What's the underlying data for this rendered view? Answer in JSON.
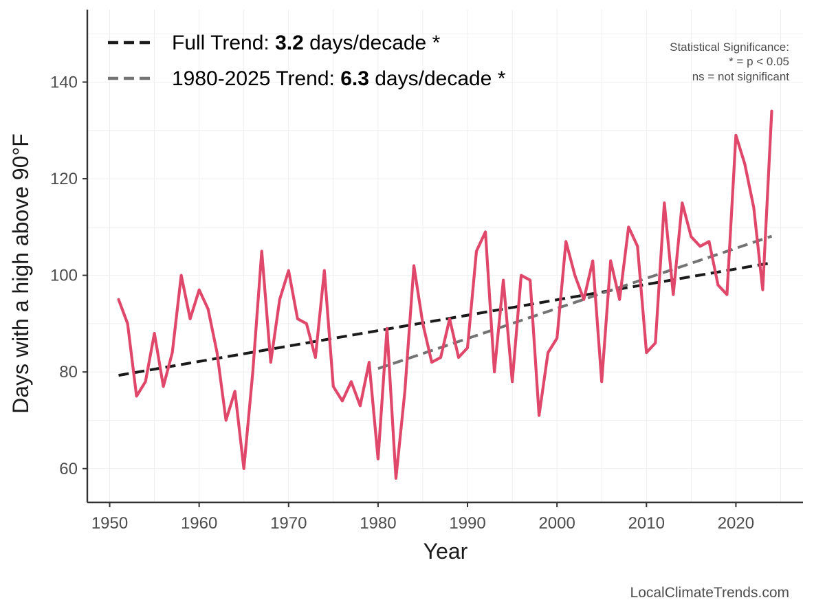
{
  "chart_data": {
    "type": "line",
    "xlabel": "Year",
    "ylabel": "Days with a high above 90°F",
    "xlim": [
      1947.5,
      2027.5
    ],
    "ylim": [
      53,
      155
    ],
    "x_ticks": [
      1950,
      1960,
      1970,
      1980,
      1990,
      2000,
      2010,
      2020
    ],
    "y_ticks": [
      60,
      80,
      100,
      120,
      140
    ],
    "grid": true,
    "series": [
      {
        "color": "#e0486b",
        "x": [
          1951,
          1952,
          1953,
          1954,
          1955,
          1956,
          1957,
          1958,
          1959,
          1960,
          1961,
          1962,
          1963,
          1964,
          1965,
          1966,
          1967,
          1968,
          1969,
          1970,
          1971,
          1972,
          1973,
          1974,
          1975,
          1976,
          1977,
          1978,
          1979,
          1980,
          1981,
          1982,
          1983,
          1984,
          1985,
          1986,
          1987,
          1988,
          1989,
          1990,
          1991,
          1992,
          1993,
          1994,
          1995,
          1996,
          1997,
          1998,
          1999,
          2000,
          2001,
          2002,
          2003,
          2004,
          2005,
          2006,
          2007,
          2008,
          2009,
          2010,
          2011,
          2012,
          2013,
          2014,
          2015,
          2016,
          2017,
          2018,
          2019,
          2020,
          2021,
          2022,
          2023,
          2024
        ],
        "values": [
          95,
          90,
          75,
          78,
          88,
          77,
          84,
          100,
          91,
          97,
          93,
          84,
          70,
          76,
          60,
          80,
          105,
          82,
          95,
          101,
          91,
          90,
          83,
          101,
          77,
          74,
          78,
          73,
          82,
          62,
          89,
          58,
          76,
          102,
          90,
          82,
          83,
          91,
          83,
          85,
          105,
          109,
          80,
          99,
          78,
          100,
          99,
          71,
          84,
          87,
          107,
          100,
          95,
          103,
          78,
          103,
          95,
          110,
          106,
          84,
          86,
          115,
          96,
          115,
          108,
          106,
          107,
          98,
          96,
          129,
          123,
          114,
          97,
          134
        ]
      }
    ],
    "trends": [
      {
        "name_prefix": "Full Trend: ",
        "rate": "3.2",
        "name_suffix": " days/decade *",
        "color": "#1a1a1a",
        "x": [
          1951,
          2024
        ],
        "values": [
          79.3,
          102.6
        ]
      },
      {
        "name_prefix": "1980-2025 Trend: ",
        "rate": "6.3",
        "name_suffix": " days/decade *",
        "color": "#737373",
        "x": [
          1980,
          2024
        ],
        "values": [
          80.7,
          108.1
        ]
      }
    ],
    "legend_position": "top-left",
    "annotation": {
      "lines": [
        "Statistical Significance:",
        "* = p < 0.05",
        "ns = not significant"
      ]
    },
    "source": "LocalClimateTrends.com"
  }
}
